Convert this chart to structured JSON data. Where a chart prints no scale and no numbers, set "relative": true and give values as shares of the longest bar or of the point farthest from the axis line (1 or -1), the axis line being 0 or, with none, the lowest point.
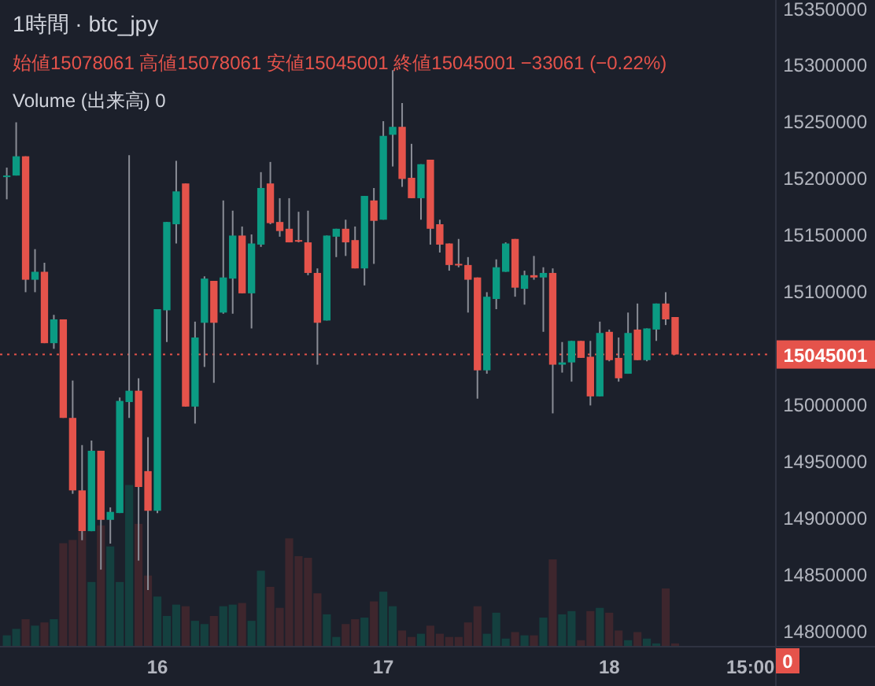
{
  "chart_data": [
    {
      "type": "candlestick",
      "title": "1時間 · btc_jpy",
      "subtitle": "始値15078061 高値15078061 安値15045001 終値15045001 −33061 (−0.22%)",
      "categories": [
        null,
        null,
        null,
        null,
        null,
        null,
        null,
        null,
        null,
        null,
        null,
        null,
        null,
        null,
        null,
        null,
        "16",
        null,
        null,
        null,
        null,
        null,
        null,
        null,
        null,
        null,
        null,
        null,
        null,
        null,
        null,
        null,
        null,
        null,
        null,
        null,
        null,
        null,
        null,
        null,
        "17",
        null,
        null,
        null,
        null,
        null,
        null,
        null,
        null,
        null,
        null,
        null,
        null,
        null,
        null,
        null,
        null,
        null,
        null,
        null,
        null,
        null,
        null,
        null,
        "18",
        null,
        null,
        null,
        null,
        null,
        null,
        null,
        null,
        null,
        null,
        null,
        null,
        null,
        null,
        "15:00"
      ],
      "ohlc": [
        [
          15203000,
          15210000,
          15182000,
          15203000
        ],
        [
          15203000,
          15250000,
          15203000,
          15220000
        ],
        [
          15220000,
          15220000,
          15100000,
          15111000
        ],
        [
          15111000,
          15138000,
          15100000,
          15118000
        ],
        [
          15118000,
          15126000,
          15055000,
          15055000
        ],
        [
          15055000,
          15080000,
          15050000,
          15076000
        ],
        [
          15076000,
          15076000,
          14989000,
          14989000
        ],
        [
          14989000,
          15022000,
          14922000,
          14925000
        ],
        [
          14925000,
          14965000,
          14881000,
          14889000
        ],
        [
          14889000,
          14969000,
          14889000,
          14960000
        ],
        [
          14960000,
          14960000,
          14855000,
          14899000
        ],
        [
          14899000,
          14910000,
          14878000,
          14906000
        ],
        [
          14905000,
          15007000,
          14905000,
          15004000
        ],
        [
          15003000,
          15221000,
          14989000,
          15013000
        ],
        [
          15013000,
          15024000,
          14863000,
          14928000
        ],
        [
          14942000,
          14972000,
          14837000,
          14907000
        ],
        [
          14907000,
          15085000,
          14905000,
          15085000
        ],
        [
          15084000,
          15162000,
          15056000,
          15162000
        ],
        [
          15160000,
          15216000,
          15143000,
          15189000
        ],
        [
          15196000,
          15196000,
          14999000,
          14999000
        ],
        [
          14999000,
          15074000,
          14984000,
          15060000
        ],
        [
          15073000,
          15114000,
          15034000,
          15112000
        ],
        [
          15110000,
          15110000,
          15020000,
          15073000
        ],
        [
          15082000,
          15181000,
          15081000,
          15113000
        ],
        [
          15112000,
          15172000,
          15081000,
          15150000
        ],
        [
          15150000,
          15158000,
          15099000,
          15099000
        ],
        [
          15099000,
          15151000,
          15068000,
          15143000
        ],
        [
          15142000,
          15206000,
          15140000,
          15192000
        ],
        [
          15196000,
          15215000,
          15160000,
          15161000
        ],
        [
          15162000,
          15183000,
          15149000,
          15154000
        ],
        [
          15156000,
          15183000,
          15144000,
          15144000
        ],
        [
          15146000,
          15171000,
          15144000,
          15145000
        ],
        [
          15144000,
          15172000,
          15115000,
          15117000
        ],
        [
          15117000,
          15121000,
          15036000,
          15073000
        ],
        [
          15075000,
          15150000,
          15075000,
          15150000
        ],
        [
          15149000,
          15156000,
          15131000,
          15156000
        ],
        [
          15156000,
          15164000,
          15132000,
          15144000
        ],
        [
          15146000,
          15158000,
          15121000,
          15121000
        ],
        [
          15121000,
          15185000,
          15106000,
          15185000
        ],
        [
          15181000,
          15192000,
          15125000,
          15163000
        ],
        [
          15164000,
          15251000,
          15164000,
          15238000
        ],
        [
          15239000,
          15296000,
          15211000,
          15246000
        ],
        [
          15246000,
          15267000,
          15193000,
          15200000
        ],
        [
          15201000,
          15231000,
          15183000,
          15183000
        ],
        [
          15183000,
          15213000,
          15164000,
          15213000
        ],
        [
          15217000,
          15217000,
          15142000,
          15156000
        ],
        [
          15160000,
          15164000,
          15135000,
          15142000
        ],
        [
          15143000,
          15143000,
          15119000,
          15124000
        ],
        [
          15125000,
          15147000,
          15122000,
          15124000
        ],
        [
          15124000,
          15131000,
          15082000,
          15111000
        ],
        [
          15113000,
          15113000,
          15006000,
          15031000
        ],
        [
          15031000,
          15100000,
          15028000,
          15096000
        ],
        [
          15094000,
          15129000,
          15085000,
          15122000
        ],
        [
          15118000,
          15144000,
          15118000,
          15143000
        ],
        [
          15147000,
          15147000,
          15096000,
          15104000
        ],
        [
          15103000,
          15119000,
          15089000,
          15115000
        ],
        [
          15115000,
          15132000,
          15111000,
          15113000
        ],
        [
          15113000,
          15122000,
          15065000,
          15117000
        ],
        [
          15117000,
          15121000,
          14993000,
          15036000
        ],
        [
          15036000,
          15056000,
          15029000,
          15038000
        ],
        [
          15038000,
          15057000,
          15021000,
          15057000
        ],
        [
          15057000,
          15057000,
          15042000,
          15042000
        ],
        [
          15043000,
          15057000,
          15000000,
          15008000
        ],
        [
          15008000,
          15074000,
          15008000,
          15064000
        ],
        [
          15065000,
          15067000,
          15039000,
          15040000
        ],
        [
          15042000,
          15060000,
          15021000,
          15024000
        ],
        [
          15028000,
          15082000,
          15028000,
          15064000
        ],
        [
          15067000,
          15090000,
          15040000,
          15040000
        ],
        [
          15040000,
          15068000,
          15039000,
          15068000
        ],
        [
          15067000,
          15090000,
          15057000,
          15090000
        ],
        [
          15090000,
          15100000,
          15071000,
          15076000
        ],
        [
          15078061,
          15078061,
          15045001,
          15045001
        ],
        null,
        null,
        null,
        null,
        null,
        null,
        null,
        null
      ],
      "colors": [
        "#0b9b83",
        "#0b9b83",
        "#e5534b",
        "#0b9b83",
        "#e5534b",
        "#0b9b83",
        "#e5534b",
        "#e5534b",
        "#e5534b",
        "#0b9b83",
        "#e5534b",
        "#0b9b83",
        "#0b9b83",
        "#0b9b83",
        "#e5534b",
        "#e5534b",
        "#0b9b83",
        "#0b9b83",
        "#0b9b83",
        "#e5534b",
        "#0b9b83",
        "#0b9b83",
        "#e5534b",
        "#0b9b83",
        "#0b9b83",
        "#e5534b",
        "#0b9b83",
        "#0b9b83",
        "#e5534b",
        "#e5534b",
        "#e5534b",
        "#e5534b",
        "#e5534b",
        "#e5534b",
        "#0b9b83",
        "#0b9b83",
        "#e5534b",
        "#e5534b",
        "#0b9b83",
        "#e5534b",
        "#0b9b83",
        "#0b9b83",
        "#e5534b",
        "#e5534b",
        "#0b9b83",
        "#e5534b",
        "#e5534b",
        "#e5534b",
        "#e5534b",
        "#e5534b",
        "#e5534b",
        "#0b9b83",
        "#0b9b83",
        "#0b9b83",
        "#e5534b",
        "#0b9b83",
        "#e5534b",
        "#0b9b83",
        "#e5534b",
        "#0b9b83",
        "#0b9b83",
        "#e5534b",
        "#e5534b",
        "#0b9b83",
        "#e5534b",
        "#e5534b",
        "#0b9b83",
        "#e5534b",
        "#0b9b83",
        "#0b9b83",
        "#e5534b",
        "#e5534b",
        null,
        null,
        null,
        null,
        null,
        null,
        null,
        null
      ],
      "ylim": [
        14787000,
        15358000
      ],
      "yticks": [
        14800000,
        14850000,
        14900000,
        14950000,
        15000000,
        15100000,
        15150000,
        15200000,
        15250000,
        15300000,
        15350000
      ],
      "ref_lines": [
        {
          "axis": "y",
          "value": 15045001,
          "label": "15045001",
          "color": "#e5534b",
          "line_style": "dotted"
        }
      ]
    },
    {
      "type": "bar",
      "relative": true,
      "title": "Volume (出来高) 0",
      "annotations": [
        "0"
      ],
      "categories": [
        null,
        null,
        null,
        null,
        null,
        null,
        null,
        null,
        null,
        null,
        null,
        null,
        null,
        null,
        null,
        null,
        null,
        null,
        null,
        null,
        null,
        null,
        null,
        null,
        null,
        null,
        null,
        null,
        null,
        null,
        null,
        null,
        null,
        null,
        null,
        null,
        null,
        null,
        null,
        null,
        null,
        null,
        null,
        null,
        null,
        null,
        null,
        null,
        null,
        null,
        null,
        null,
        null,
        null,
        null,
        null,
        null,
        null,
        null,
        null,
        null,
        null,
        null,
        null,
        null,
        null,
        null,
        null,
        null,
        null,
        null,
        null,
        null,
        null,
        null,
        null,
        null,
        null,
        null,
        null
      ],
      "values": [
        0.07,
        0.11,
        0.17,
        0.13,
        0.15,
        0.17,
        0.64,
        0.66,
        0.71,
        0.4,
        0.75,
        0.62,
        0.4,
        1,
        0.76,
        0.44,
        0.31,
        0.19,
        0.26,
        0.25,
        0.16,
        0.14,
        0.19,
        0.25,
        0.26,
        0.27,
        0.16,
        0.47,
        0.37,
        0.24,
        0.67,
        0.56,
        0.55,
        0.33,
        0.2,
        0.06,
        0.14,
        0.17,
        0.18,
        0.28,
        0.34,
        0.25,
        0.1,
        0.06,
        0.08,
        0.13,
        0.08,
        0.06,
        0.06,
        0.15,
        0.25,
        0.08,
        0.21,
        0.05,
        0.09,
        0.07,
        0.07,
        0.18,
        0.54,
        0.2,
        0.22,
        0.04,
        0.22,
        0.24,
        0.21,
        0.1,
        0.04,
        0.09,
        0.05,
        0.02,
        0.36,
        0.02,
        null,
        null,
        null,
        null,
        null,
        null,
        null,
        null
      ],
      "colors": [
        "#14403f",
        "#14403f",
        "#3e262d",
        "#14403f",
        "#3e262d",
        "#14403f",
        "#3e262d",
        "#3e262d",
        "#3e262d",
        "#14403f",
        "#3e262d",
        "#14403f",
        "#14403f",
        "#14403f",
        "#3e262d",
        "#3e262d",
        "#14403f",
        "#14403f",
        "#14403f",
        "#3e262d",
        "#14403f",
        "#14403f",
        "#3e262d",
        "#14403f",
        "#14403f",
        "#3e262d",
        "#14403f",
        "#14403f",
        "#3e262d",
        "#3e262d",
        "#3e262d",
        "#3e262d",
        "#3e262d",
        "#3e262d",
        "#14403f",
        "#14403f",
        "#3e262d",
        "#3e262d",
        "#14403f",
        "#3e262d",
        "#14403f",
        "#14403f",
        "#3e262d",
        "#3e262d",
        "#14403f",
        "#3e262d",
        "#3e262d",
        "#3e262d",
        "#3e262d",
        "#3e262d",
        "#3e262d",
        "#14403f",
        "#14403f",
        "#14403f",
        "#3e262d",
        "#14403f",
        "#3e262d",
        "#14403f",
        "#3e262d",
        "#14403f",
        "#14403f",
        "#3e262d",
        "#3e262d",
        "#14403f",
        "#3e262d",
        "#3e262d",
        "#14403f",
        "#3e262d",
        "#14403f",
        "#14403f",
        "#3e262d",
        "#3e262d",
        null,
        null,
        null,
        null,
        null,
        null,
        null,
        null
      ]
    }
  ]
}
